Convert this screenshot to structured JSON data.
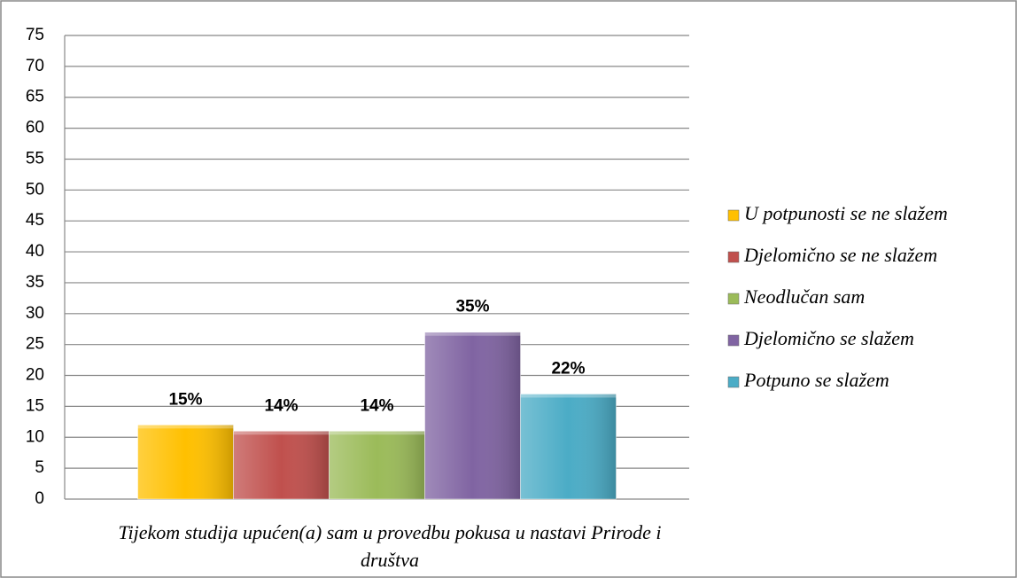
{
  "chart_data": {
    "type": "bar",
    "categories": [
      "Tijekom studija upućen(a) sam u provedbu pokusa u nastavi Prirode i društva"
    ],
    "series": [
      {
        "name": "U potpunosti se ne slažem",
        "color": "#ffc000",
        "values": [
          12
        ],
        "shares": [
          15
        ],
        "share_labels": [
          "15%"
        ]
      },
      {
        "name": "Djelomično se ne slažem",
        "color": "#c0504d",
        "values": [
          11
        ],
        "shares": [
          14
        ],
        "share_labels": [
          "14%"
        ]
      },
      {
        "name": "Neodlučan sam",
        "color": "#9bbb59",
        "values": [
          11
        ],
        "shares": [
          14
        ],
        "share_labels": [
          "14%"
        ]
      },
      {
        "name": "Djelomično se slažem",
        "color": "#8064a2",
        "values": [
          27
        ],
        "shares": [
          35
        ],
        "share_labels": [
          "35%"
        ]
      },
      {
        "name": "Potpuno se slažem",
        "color": "#4bacc6",
        "values": [
          17
        ],
        "shares": [
          22
        ],
        "share_labels": [
          "22%"
        ]
      }
    ],
    "ylim": [
      0,
      75
    ],
    "yticks": [
      0,
      5,
      10,
      15,
      20,
      25,
      30,
      35,
      40,
      45,
      50,
      55,
      60,
      65,
      70,
      75
    ],
    "grid": true,
    "legend": "right"
  }
}
